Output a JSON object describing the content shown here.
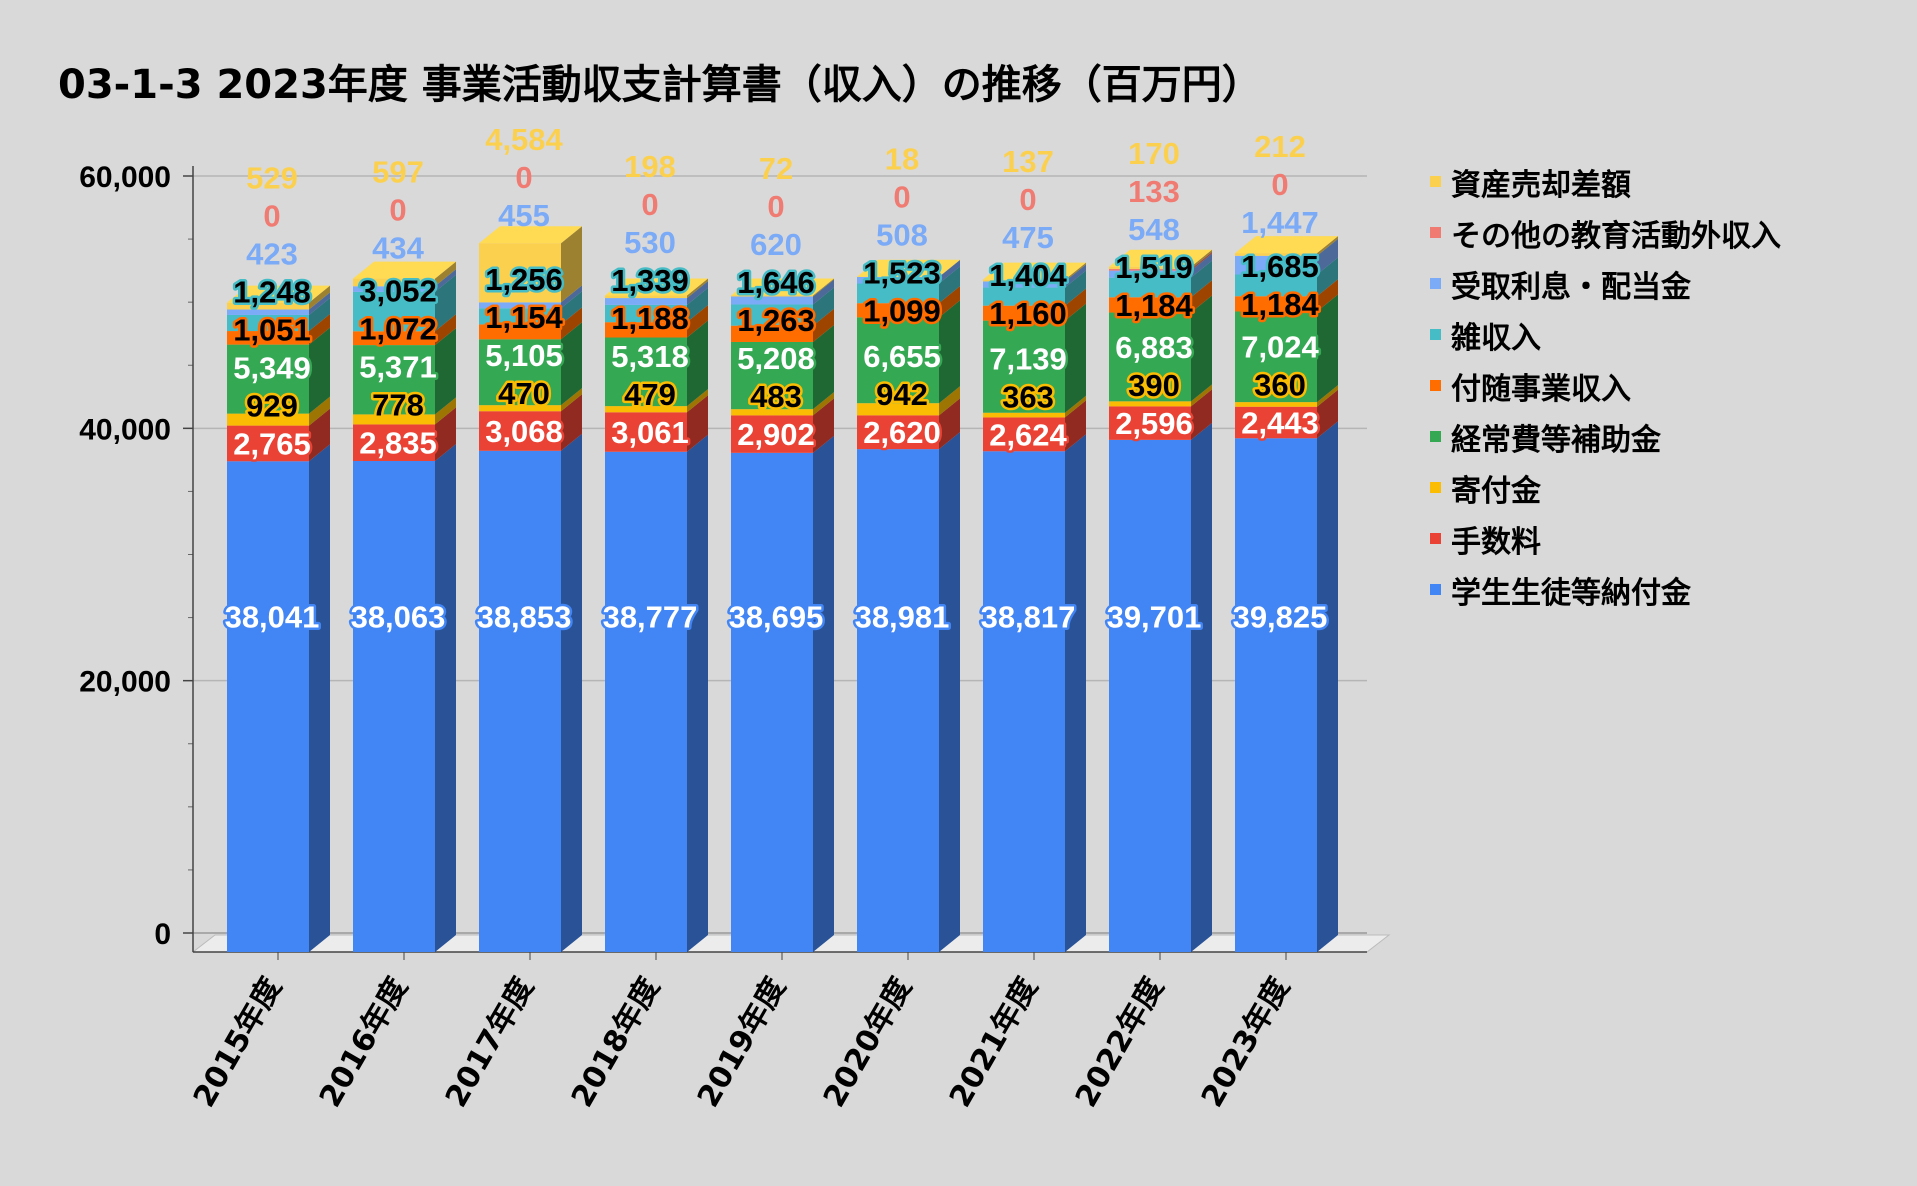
{
  "chart_data": {
    "type": "bar",
    "stacked": true,
    "title": "03-1-3 2023年度 事業活動収支計算書（収入）の推移（百万円）",
    "xlabel": "",
    "ylabel": "",
    "ylim": [
      0,
      60000
    ],
    "yticks": [
      "0",
      "20,000",
      "40,000",
      "60,000"
    ],
    "yticks_values": [
      0,
      20000,
      40000,
      60000
    ],
    "grid": true,
    "legend_position": "right",
    "categories": [
      "2015年度",
      "2016年度",
      "2017年度",
      "2018年度",
      "2019年度",
      "2020年度",
      "2021年度",
      "2022年度",
      "2023年度"
    ],
    "series": [
      {
        "name": "学生生徒等納付金",
        "color": "#4285f4",
        "values": [
          38041,
          38063,
          38853,
          38777,
          38695,
          38981,
          38817,
          39701,
          39825
        ]
      },
      {
        "name": "手数料",
        "color": "#ea4335",
        "values": [
          2765,
          2835,
          3068,
          3061,
          2902,
          2620,
          2624,
          2596,
          2443
        ]
      },
      {
        "name": "寄付金",
        "color": "#fbbc04",
        "values": [
          929,
          778,
          470,
          479,
          483,
          942,
          363,
          390,
          360
        ]
      },
      {
        "name": "経常費等補助金",
        "color": "#34a853",
        "values": [
          5349,
          5371,
          5105,
          5318,
          5208,
          6655,
          7139,
          6883,
          7024
        ]
      },
      {
        "name": "付随事業収入",
        "color": "#ff6d01",
        "values": [
          1051,
          1072,
          1154,
          1188,
          1263,
          1099,
          1160,
          1184,
          1184
        ]
      },
      {
        "name": "雑収入",
        "color": "#46bdc6",
        "values": [
          1248,
          3052,
          1256,
          1339,
          1646,
          1523,
          1404,
          1519,
          1685
        ]
      },
      {
        "name": "受取利息・配当金",
        "color": "#7baaf7",
        "values": [
          423,
          434,
          455,
          530,
          620,
          508,
          475,
          548,
          1447
        ]
      },
      {
        "name": "その他の教育活動外収入",
        "color": "#f07b72",
        "values": [
          0,
          0,
          0,
          0,
          0,
          0,
          0,
          133,
          0
        ]
      },
      {
        "name": "資産売却差額",
        "color": "#fcd04f",
        "values": [
          529,
          597,
          4584,
          198,
          72,
          18,
          137,
          170,
          212
        ]
      }
    ]
  }
}
